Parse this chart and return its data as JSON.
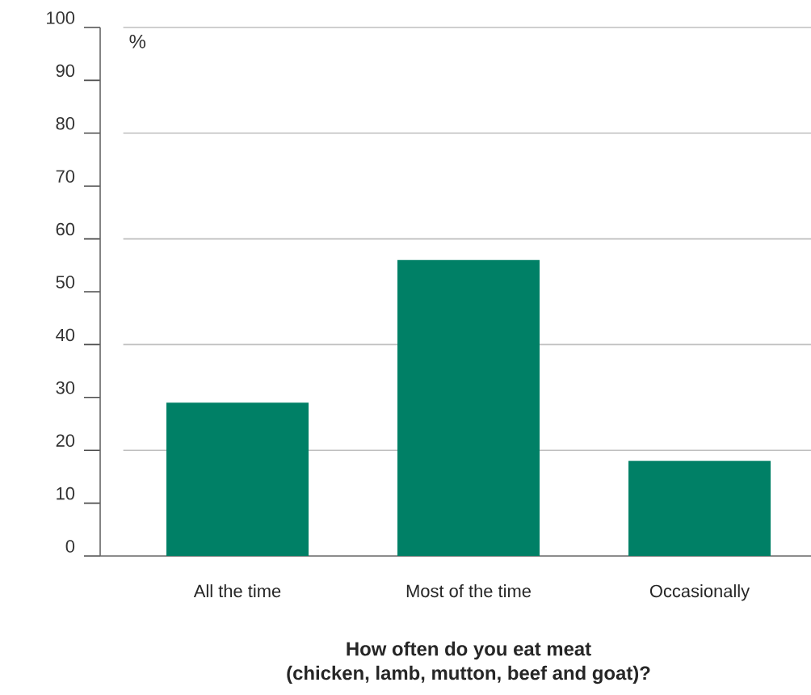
{
  "chart_data": {
    "type": "bar",
    "xlabel": "How often do you eat meat\n(chicken, lamb, mutton, beef and goat)?",
    "ylabel": "%",
    "categories": [
      "All the time",
      "Most of the time",
      "Occasionally"
    ],
    "values": [
      29,
      56,
      18
    ],
    "color": "#008066",
    "ylim": [
      0,
      100
    ],
    "yticks": [
      0,
      10,
      20,
      30,
      40,
      50,
      60,
      70,
      80,
      90,
      100
    ],
    "grid": "y"
  }
}
